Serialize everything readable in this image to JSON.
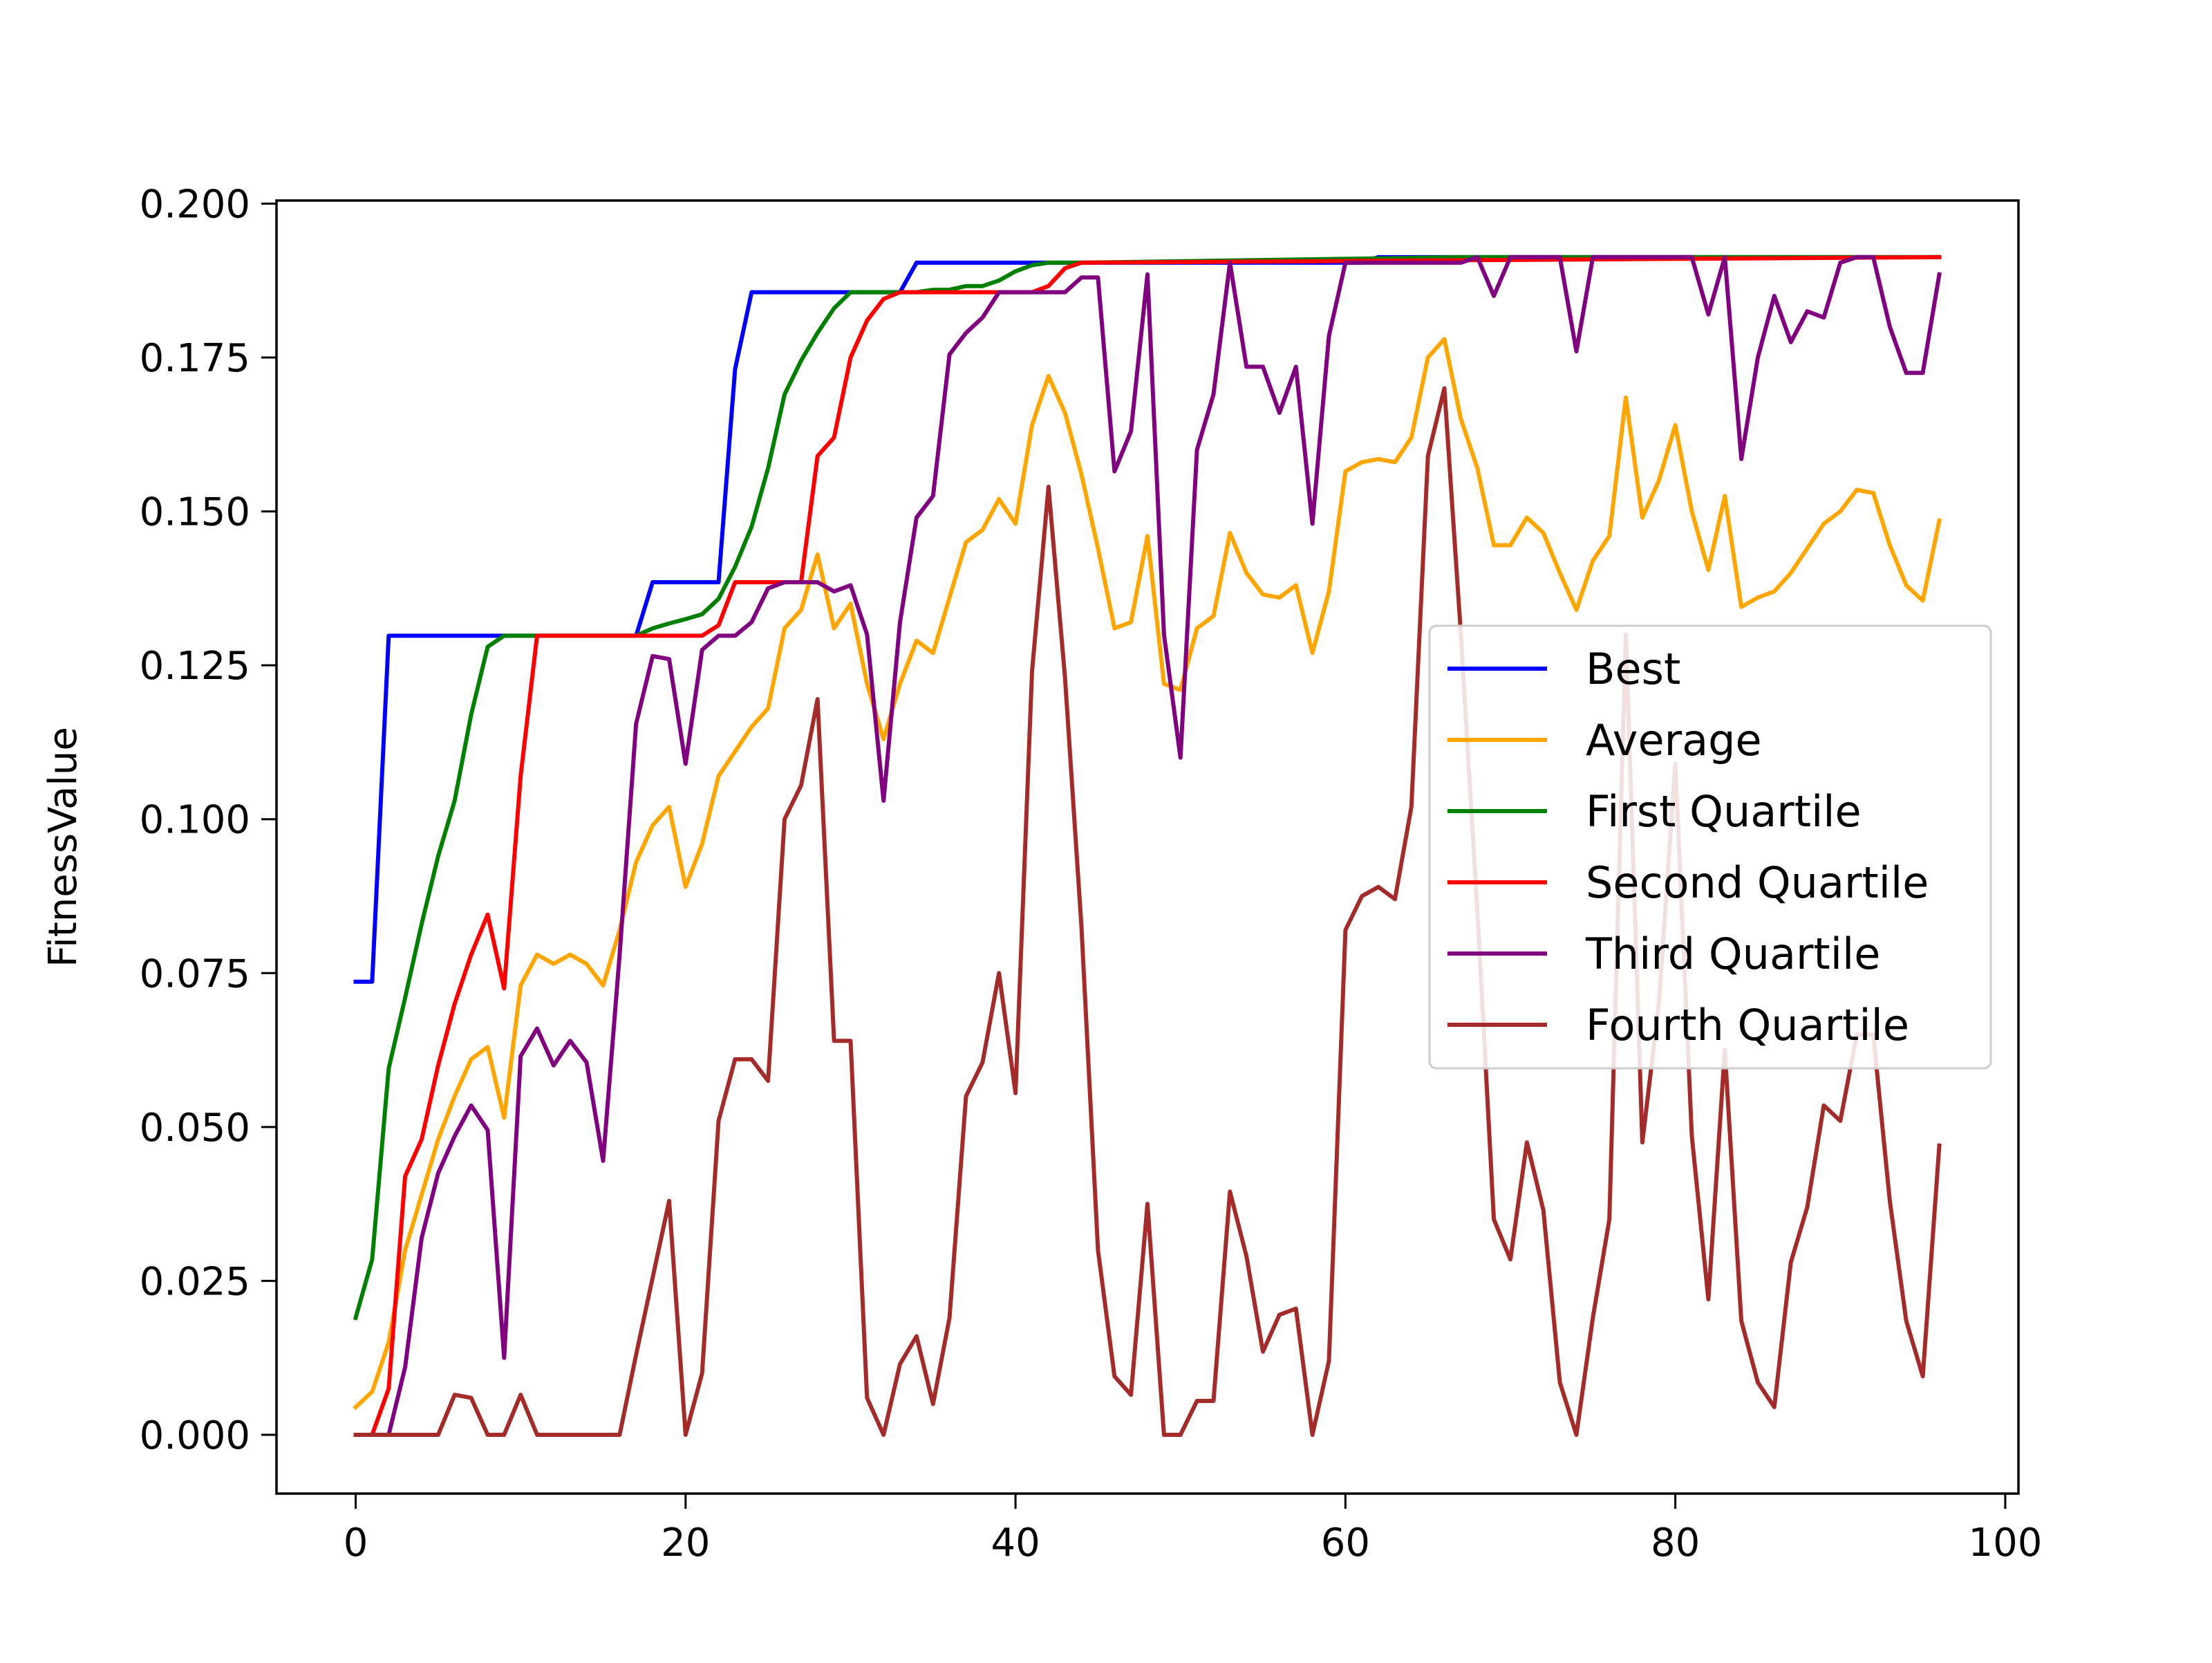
{
  "chart_data": {
    "type": "line",
    "title": "",
    "xlabel": "",
    "ylabel": "FitnessValue",
    "xlim": [
      -4.8,
      100.8
    ],
    "ylim": [
      -0.00955,
      0.2005
    ],
    "xticks": [
      "0",
      "20",
      "40",
      "60",
      "80",
      "100"
    ],
    "yticks": [
      "0.000",
      "0.025",
      "0.050",
      "0.075",
      "0.100",
      "0.125",
      "0.150",
      "0.175",
      "0.200"
    ],
    "grid": false,
    "legend_position": "center-right",
    "series": [
      {
        "name": "Best",
        "color": "#0000ff",
        "x": [
          0,
          1,
          2,
          17,
          18,
          22,
          23,
          24,
          33,
          34,
          61,
          62,
          96
        ],
        "y": [
          0.0736,
          0.0736,
          0.1298,
          0.1298,
          0.1385,
          0.1385,
          0.1731,
          0.1856,
          0.1856,
          0.1904,
          0.1904,
          0.1913,
          0.1913
        ]
      },
      {
        "name": "Average",
        "color": "#ffa500",
        "x": [
          0,
          1,
          2,
          3,
          4,
          5,
          6,
          7,
          8,
          9,
          10,
          11,
          12,
          13,
          14,
          15,
          16,
          17,
          18,
          19,
          20,
          21,
          22,
          23,
          24,
          25,
          26,
          27,
          28,
          29,
          30,
          31,
          32,
          33,
          34,
          35,
          36,
          37,
          38,
          39,
          40,
          41,
          42,
          43,
          44,
          45,
          46,
          47,
          48,
          49,
          50,
          51,
          52,
          53,
          54,
          55,
          56,
          57,
          58,
          59,
          60,
          61,
          62,
          63,
          64,
          65,
          66,
          67,
          68,
          69,
          70,
          71,
          72,
          73,
          74,
          75,
          76,
          77,
          78,
          79,
          80,
          81,
          82,
          83,
          84,
          85,
          86,
          87,
          88,
          89,
          90,
          91,
          92,
          93,
          94,
          95,
          96
        ],
        "y": [
          0.0045,
          0.007,
          0.015,
          0.03,
          0.039,
          0.048,
          0.055,
          0.061,
          0.063,
          0.0515,
          0.073,
          0.078,
          0.0765,
          0.078,
          0.0765,
          0.073,
          0.082,
          0.093,
          0.099,
          0.102,
          0.089,
          0.096,
          0.107,
          0.111,
          0.115,
          0.118,
          0.131,
          0.134,
          0.143,
          0.131,
          0.135,
          0.122,
          0.113,
          0.122,
          0.129,
          0.127,
          0.136,
          0.145,
          0.147,
          0.152,
          0.148,
          0.164,
          0.172,
          0.166,
          0.156,
          0.144,
          0.131,
          0.132,
          0.146,
          0.122,
          0.121,
          0.131,
          0.133,
          0.1465,
          0.14,
          0.1365,
          0.136,
          0.138,
          0.127,
          0.137,
          0.1565,
          0.158,
          0.1585,
          0.158,
          0.162,
          0.175,
          0.178,
          0.165,
          0.157,
          0.1445,
          0.1445,
          0.149,
          0.1465,
          0.14,
          0.134,
          0.142,
          0.146,
          0.1685,
          0.149,
          0.155,
          0.164,
          0.15,
          0.1405,
          0.1525,
          0.1345,
          0.136,
          0.137,
          0.14,
          0.144,
          0.148,
          0.15,
          0.1535,
          0.153,
          0.1445,
          0.138,
          0.1355,
          0.1485
        ]
      },
      {
        "name": "First Quartile",
        "color": "#008000",
        "x": [
          0,
          1,
          2,
          3,
          4,
          5,
          6,
          7,
          8,
          9,
          10,
          17,
          18,
          19,
          20,
          21,
          22,
          23,
          24,
          25,
          26,
          27,
          28,
          29,
          30,
          31,
          32,
          33,
          34,
          35,
          36,
          37,
          38,
          39,
          40,
          41,
          42,
          43,
          44,
          67,
          96
        ],
        "y": [
          0.019,
          0.0285,
          0.0595,
          0.071,
          0.083,
          0.094,
          0.103,
          0.117,
          0.128,
          0.1298,
          0.1298,
          0.1298,
          0.131,
          0.1318,
          0.1325,
          0.1333,
          0.1358,
          0.141,
          0.1475,
          0.157,
          0.169,
          0.1745,
          0.179,
          0.183,
          0.1856,
          0.1856,
          0.1856,
          0.1856,
          0.1856,
          0.186,
          0.186,
          0.1866,
          0.1866,
          0.1875,
          0.189,
          0.19,
          0.1904,
          0.1904,
          0.1904,
          0.1913,
          0.1913
        ]
      },
      {
        "name": "Second Quartile",
        "color": "#ff0000",
        "x": [
          0,
          1,
          2,
          3,
          4,
          5,
          6,
          7,
          8,
          9,
          10,
          11,
          21,
          22,
          23,
          24,
          26,
          27,
          28,
          29,
          30,
          31,
          32,
          33,
          41,
          42,
          43,
          44,
          96
        ],
        "y": [
          0.0,
          0.0,
          0.0075,
          0.042,
          0.048,
          0.06,
          0.07,
          0.078,
          0.0845,
          0.0725,
          0.107,
          0.1298,
          0.1298,
          0.1315,
          0.1385,
          0.1385,
          0.1385,
          0.1385,
          0.159,
          0.162,
          0.175,
          0.181,
          0.1845,
          0.1856,
          0.1856,
          0.1866,
          0.1895,
          0.1904,
          0.1913
        ]
      },
      {
        "name": "Third Quartile",
        "color": "#800080",
        "x": [
          0,
          1,
          2,
          3,
          4,
          5,
          6,
          7,
          8,
          9,
          10,
          11,
          12,
          13,
          14,
          15,
          16,
          17,
          18,
          19,
          20,
          21,
          22,
          23,
          24,
          25,
          26,
          27,
          28,
          29,
          30,
          31,
          32,
          33,
          34,
          35,
          36,
          37,
          38,
          39,
          40,
          41,
          42,
          43,
          44,
          45,
          46,
          47,
          48,
          49,
          50,
          51,
          52,
          53,
          54,
          55,
          56,
          57,
          58,
          59,
          60,
          61,
          62,
          63,
          64,
          65,
          66,
          67,
          68,
          69,
          70,
          71,
          72,
          73,
          74,
          75,
          76,
          77,
          78,
          79,
          80,
          81,
          82,
          83,
          84,
          85,
          86,
          87,
          88,
          89,
          90,
          91,
          92,
          93,
          94,
          95,
          96
        ],
        "y": [
          0.0,
          0.0,
          0.0,
          0.011,
          0.032,
          0.0425,
          0.0485,
          0.0535,
          0.0495,
          0.0125,
          0.0615,
          0.066,
          0.06,
          0.064,
          0.0605,
          0.0445,
          0.078,
          0.1155,
          0.1265,
          0.126,
          0.109,
          0.1275,
          0.1298,
          0.1298,
          0.132,
          0.1375,
          0.1385,
          0.1385,
          0.1385,
          0.137,
          0.138,
          0.13,
          0.103,
          0.132,
          0.149,
          0.1525,
          0.1755,
          0.179,
          0.1815,
          0.1856,
          0.1856,
          0.1856,
          0.1856,
          0.1856,
          0.188,
          0.188,
          0.1565,
          0.163,
          0.1885,
          0.13,
          0.11,
          0.16,
          0.169,
          0.1904,
          0.1735,
          0.1735,
          0.166,
          0.1735,
          0.148,
          0.1785,
          0.1904,
          0.1904,
          0.1904,
          0.1904,
          0.1904,
          0.1904,
          0.1904,
          0.1904,
          0.1913,
          0.185,
          0.1913,
          0.1913,
          0.1913,
          0.1913,
          0.176,
          0.1913,
          0.1913,
          0.1913,
          0.1913,
          0.1913,
          0.1913,
          0.1913,
          0.182,
          0.1913,
          0.1585,
          0.175,
          0.185,
          0.1775,
          0.1825,
          0.1815,
          0.1904,
          0.1913,
          0.1913,
          0.18,
          0.1725,
          0.1725,
          0.1885
        ]
      },
      {
        "name": "Fourth Quartile",
        "color": "#a52a2a",
        "x": [
          0,
          1,
          2,
          3,
          4,
          5,
          6,
          7,
          8,
          9,
          10,
          11,
          12,
          13,
          14,
          15,
          16,
          17,
          18,
          19,
          20,
          21,
          22,
          23,
          24,
          25,
          26,
          27,
          28,
          29,
          30,
          31,
          32,
          33,
          34,
          35,
          36,
          37,
          38,
          39,
          40,
          41,
          42,
          43,
          44,
          45,
          46,
          47,
          48,
          49,
          50,
          51,
          52,
          53,
          54,
          55,
          56,
          57,
          58,
          59,
          60,
          61,
          62,
          63,
          64,
          65,
          66,
          67,
          68,
          69,
          70,
          71,
          72,
          73,
          74,
          75,
          76,
          77,
          78,
          79,
          80,
          81,
          82,
          83,
          84,
          85,
          86,
          87,
          88,
          89,
          90,
          91,
          92,
          93,
          94,
          95,
          96
        ],
        "y": [
          0.0,
          0.0,
          0.0,
          0.0,
          0.0,
          0.0,
          0.0065,
          0.006,
          0.0,
          0.0,
          0.0065,
          0.0,
          0.0,
          0.0,
          0.0,
          0.0,
          0.0,
          0.013,
          0.0255,
          0.038,
          0.0,
          0.01,
          0.051,
          0.061,
          0.061,
          0.0575,
          0.1,
          0.1055,
          0.1195,
          0.064,
          0.064,
          0.006,
          0.0,
          0.0115,
          0.016,
          0.005,
          0.019,
          0.055,
          0.0605,
          0.075,
          0.0555,
          0.124,
          0.154,
          0.123,
          0.0825,
          0.03,
          0.0095,
          0.0065,
          0.0375,
          0.0,
          0.0,
          0.0055,
          0.0055,
          0.0395,
          0.029,
          0.0135,
          0.0195,
          0.0205,
          0.0,
          0.012,
          0.082,
          0.0875,
          0.089,
          0.087,
          0.102,
          0.159,
          0.17,
          0.13,
          0.085,
          0.035,
          0.0285,
          0.0475,
          0.0365,
          0.0085,
          0.0,
          0.019,
          0.035,
          0.13,
          0.0475,
          0.07,
          0.109,
          0.0485,
          0.022,
          0.0625,
          0.0185,
          0.0085,
          0.0045,
          0.028,
          0.037,
          0.0535,
          0.051,
          0.065,
          0.065,
          0.038,
          0.0185,
          0.0095,
          0.047
        ]
      }
    ]
  }
}
